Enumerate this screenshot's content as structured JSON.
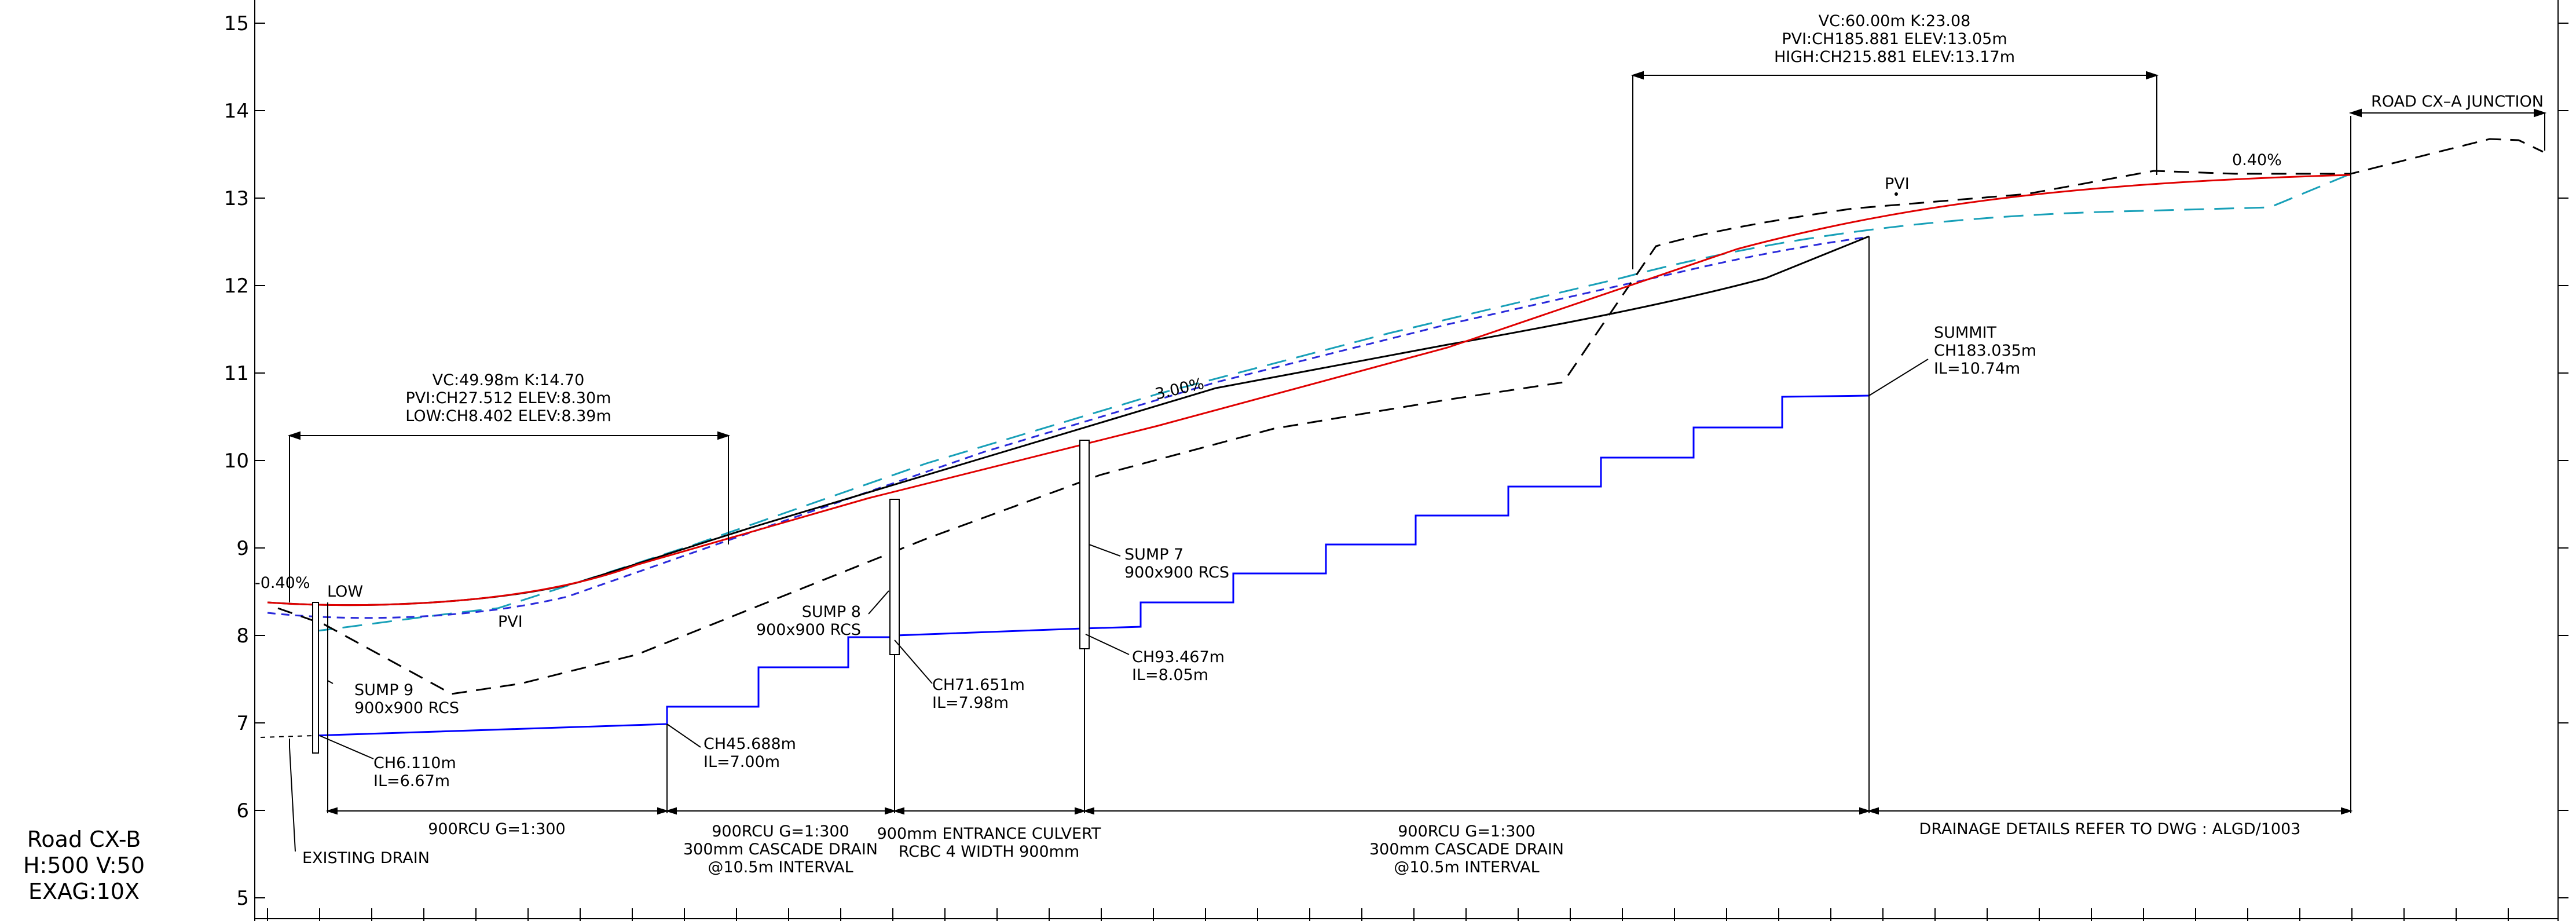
{
  "colors": {
    "design_line": "#e00000",
    "existing_ground": "#000000",
    "invert_line": "#0000ff",
    "dashed_blue": "#2a2adb",
    "dashed_cyan": "#18a0b8"
  },
  "axis": {
    "y_ticks": [
      "15",
      "14",
      "13",
      "12",
      "11",
      "10",
      "9",
      "8",
      "7",
      "6",
      "5"
    ]
  },
  "title_block": {
    "line1": "Road  CX-B",
    "line2": "H:500  V:50",
    "line3": "EXAG:10X"
  },
  "curves": {
    "sag": {
      "line1": "VC:49.98m  K:14.70",
      "line2": "PVI:CH27.512  ELEV:8.30m",
      "line3": "LOW:CH8.402  ELEV:8.39m"
    },
    "crest": {
      "line1": "VC:60.00m  K:23.08",
      "line2": "PVI:CH185.881  ELEV:13.05m",
      "line3": "HIGH:CH215.881  ELEV:13.17m"
    }
  },
  "grades": {
    "left": "-0.40%",
    "middle": "3.00%",
    "right": "0.40%"
  },
  "markers": {
    "low": "LOW",
    "pvi_sag": "PVI",
    "pvi_crest": "PVI"
  },
  "junction": "ROAD  CX–A  JUNCTION",
  "pits": {
    "sump9": {
      "name": "SUMP  9",
      "size": "900x900  RCS"
    },
    "sump8": {
      "name": "SUMP  8",
      "size": "900x900  RCS"
    },
    "sump7": {
      "name": "SUMP  7",
      "size": "900x900  RCS"
    }
  },
  "inverts": {
    "ch6": {
      "ch": "CH6.110m",
      "il": "IL=6.67m"
    },
    "ch45": {
      "ch": "CH45.688m",
      "il": "IL=7.00m"
    },
    "ch71": {
      "ch": "CH71.651m",
      "il": "IL=7.98m"
    },
    "ch93": {
      "ch": "CH93.467m",
      "il": "IL=8.05m"
    },
    "summit": {
      "title": "SUMMIT",
      "ch": "CH183.035m",
      "il": "IL=10.74m"
    }
  },
  "existing_drain": "EXISTING  DRAIN",
  "bands": {
    "b1": {
      "line1": "900RCU  G=1:300"
    },
    "b2": {
      "line1": "900RCU  G=1:300",
      "line2": "300mm  CASCADE  DRAIN",
      "line3": "@10.5m  INTERVAL"
    },
    "b3": {
      "line1": "900mm  ENTRANCE  CULVERT",
      "line2": "RCBC  4  WIDTH  900mm"
    },
    "b4": {
      "line1": "900RCU  G=1:300",
      "line2": "300mm  CASCADE  DRAIN",
      "line3": "@10.5m  INTERVAL"
    },
    "b5": {
      "line1": "DRAINAGE  DETAILS  REFER  TO  DWG : ALGD/1003"
    }
  }
}
